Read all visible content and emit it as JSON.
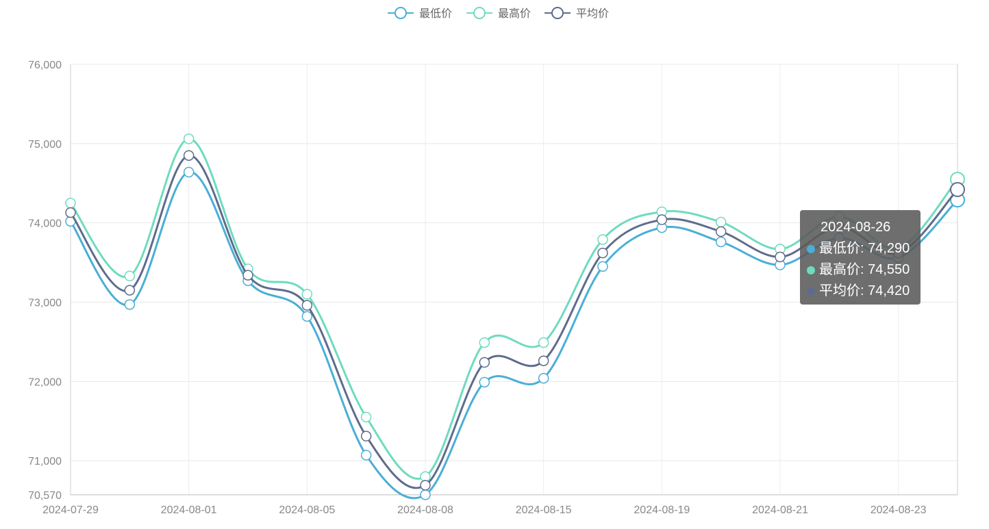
{
  "chart_data": {
    "type": "line",
    "smooth": true,
    "x": [
      "2024-07-29",
      "2024-07-31",
      "2024-08-01",
      "2024-08-02",
      "2024-08-05",
      "2024-08-07",
      "2024-08-08",
      "2024-08-12",
      "2024-08-15",
      "2024-08-16",
      "2024-08-19",
      "2024-08-20",
      "2024-08-21",
      "2024-08-22",
      "2024-08-23",
      "2024-08-26"
    ],
    "x_tick_labels": [
      "2024-07-29",
      "2024-08-01",
      "2024-08-05",
      "2024-08-08",
      "2024-08-15",
      "2024-08-19",
      "2024-08-21",
      "2024-08-23"
    ],
    "ylim": [
      70570,
      76000
    ],
    "y_ticks": [
      70570,
      71000,
      72000,
      73000,
      74000,
      75000,
      76000
    ],
    "y_tick_labels": [
      "70,570",
      "71,000",
      "72,000",
      "73,000",
      "74,000",
      "75,000",
      "76,000"
    ],
    "grid": true,
    "legend_position": "top-center",
    "series": [
      {
        "name": "最低价",
        "color": "#4aaed6",
        "values": [
          74020,
          72970,
          74640,
          73270,
          72820,
          71070,
          70570,
          71990,
          72040,
          73450,
          73940,
          73760,
          73470,
          73810,
          73560,
          74290
        ]
      },
      {
        "name": "最高价",
        "color": "#6fdbbf",
        "values": [
          74250,
          73330,
          75060,
          73420,
          73100,
          71550,
          70800,
          72490,
          72490,
          73790,
          74140,
          74010,
          73670,
          74080,
          73680,
          74550
        ]
      },
      {
        "name": "平均价",
        "color": "#5f6b8b",
        "values": [
          74130,
          73150,
          74850,
          73340,
          72960,
          71310,
          70690,
          72240,
          72260,
          73620,
          74040,
          73890,
          73570,
          73950,
          73620,
          74420
        ]
      }
    ],
    "tooltip": {
      "title": "2024-08-26",
      "rows": [
        {
          "label": "最低价: 74,290",
          "color": "#4aaed6"
        },
        {
          "label": "最高价: 74,550",
          "color": "#6fdbbf"
        },
        {
          "label": "平均价: 74,420",
          "color": "#5f6b8b"
        }
      ]
    }
  }
}
